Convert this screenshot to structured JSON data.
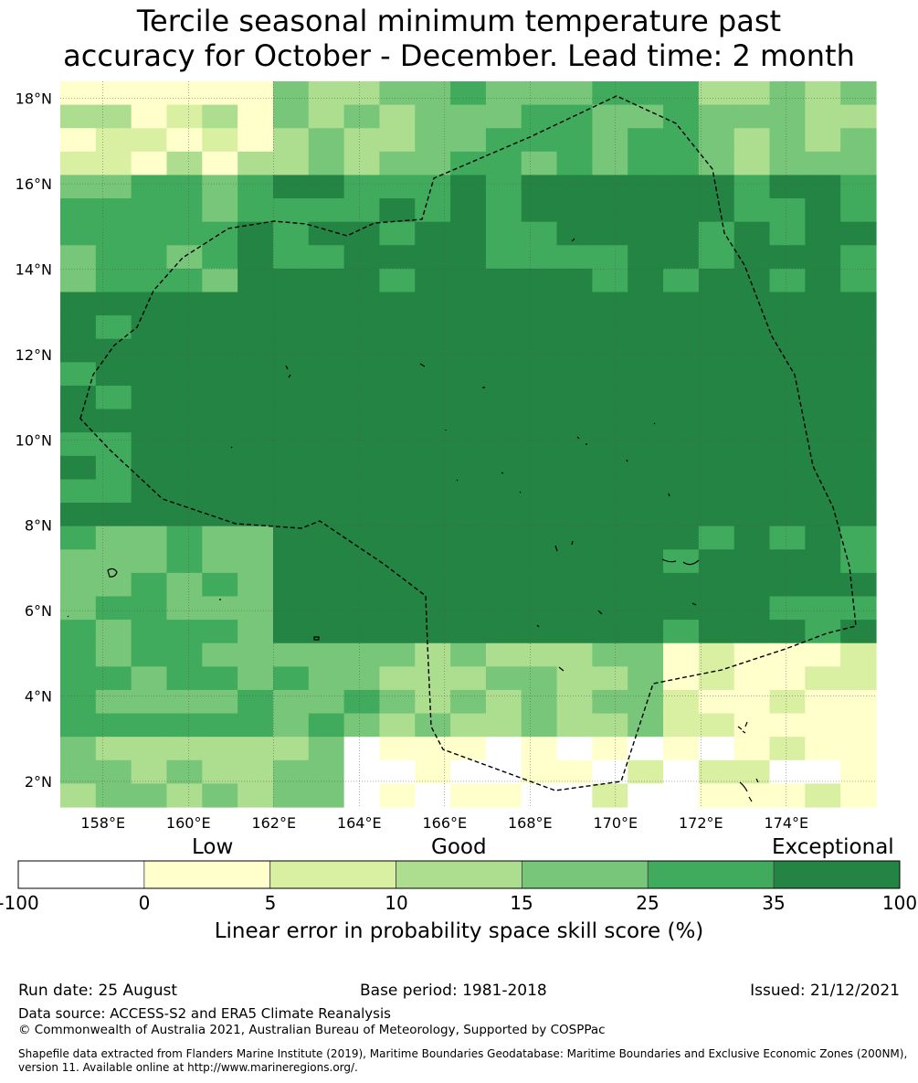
{
  "title": {
    "line1": "Tercile seasonal minimum temperature past",
    "line2": "accuracy for October - December. Lead time: 2 month"
  },
  "map": {
    "lat_labels": [
      "18°N",
      "16°N",
      "14°N",
      "12°N",
      "10°N",
      "8°N",
      "6°N",
      "4°N",
      "2°N"
    ],
    "lon_labels": [
      "158°E",
      "160°E",
      "162°E",
      "164°E",
      "166°E",
      "168°E",
      "170°E",
      "172°E",
      "174°E"
    ],
    "lon_range": [
      157,
      176.1
    ],
    "lat_range": [
      1.4,
      18.4
    ],
    "boundary_color": "#000000"
  },
  "colorbar": {
    "category_labels": [
      "Low",
      "Good",
      "Exceptional"
    ],
    "tick_labels": [
      "-100",
      "0",
      "5",
      "10",
      "15",
      "25",
      "35",
      "100"
    ],
    "colors": [
      "#ffffff",
      "#ffffcc",
      "#d9f0a3",
      "#addd8e",
      "#78c679",
      "#41ab5d",
      "#238443"
    ],
    "axis_label": "Linear error in probability space skill score (%)"
  },
  "footer": {
    "run_date": "Run date: 25 August",
    "base_period": "Base period: 1981-2018",
    "issued": "Issued: 21/12/2021",
    "data_source": "Data source: ACCESS-S2 and ERA5 Climate Reanalysis",
    "copyright": "© Commonwealth of Australia 2021, Australian Bureau of Meteorology, Supported by COSPPac",
    "shapefile_note": "Shapefile data extracted from Flanders Marine Institute (2019), Maritime Boundaries Geodatabase: Maritime Boundaries and Exclusive Economic Zones (200NM), version 11. Available online at http://www.marineregions.org/."
  }
}
